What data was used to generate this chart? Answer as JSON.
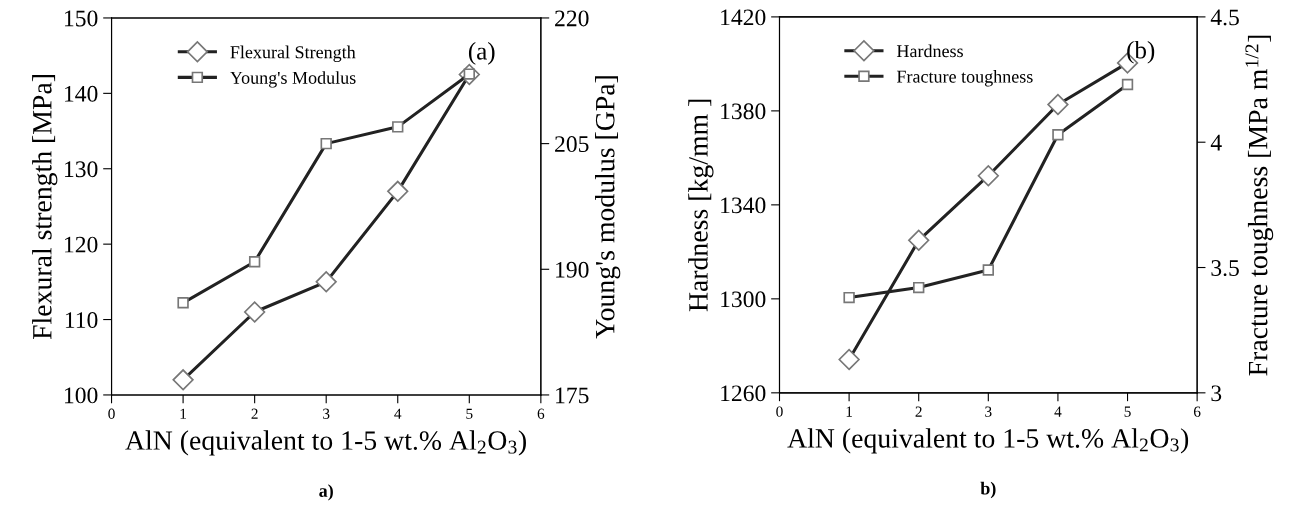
{
  "chart_data": [
    {
      "type": "line",
      "x": [
        1,
        2,
        3,
        4,
        5
      ],
      "xlim": [
        0,
        6
      ],
      "xticks": [
        0,
        1,
        2,
        3,
        4,
        5,
        6
      ],
      "ylim": [
        100,
        150
      ],
      "yticks": [
        100,
        110,
        120,
        130,
        140,
        150
      ],
      "y2lim": [
        175,
        220
      ],
      "y2ticks": [
        175,
        190,
        205,
        220
      ],
      "xlabel": "AlN (equivalent to 1-5 wt.% Al$_{2}$O$_{3}$)",
      "ylabel": "Flexural strength [MPa]",
      "y2label": "Young's modulus [GPa]",
      "legend": "top left",
      "grid": false,
      "line_style": "solid",
      "annotations": [
        "(a)",
        "a)"
      ],
      "series": [
        {
          "name": "Flexural Strength",
          "color": "#222222",
          "marker": "diamond",
          "values": [
            102,
            111,
            115,
            127,
            142.5
          ]
        },
        {
          "name": "Young's Modulus",
          "color": "#222222",
          "marker": "square",
          "axis": "y2",
          "values": [
            186.0,
            190.9,
            205.0,
            207.0,
            213.3
          ]
        }
      ]
    },
    {
      "type": "line",
      "x": [
        1,
        2,
        3,
        4,
        5
      ],
      "xlim": [
        0,
        6
      ],
      "xticks": [
        0,
        1,
        2,
        3,
        4,
        5,
        6
      ],
      "ylim": [
        1260,
        1420
      ],
      "yticks": [
        1260,
        1300,
        1340,
        1380,
        1420
      ],
      "y2lim": [
        3,
        4.5
      ],
      "y2ticks": [
        {
          "value": 3,
          "label": "3"
        },
        3.5,
        {
          "value": 4,
          "label": "4"
        },
        4.5
      ],
      "xlabel": "AlN (equivalent to 1-5 wt.% Al$_{2}$O$_{3}$)",
      "ylabel": "Hardness [kg/mm ]",
      "y2label": "Fracture toughness [MPa m$^{1/2}$]",
      "legend": "top left",
      "grid": false,
      "line_style": "solid",
      "annotations": [
        "(b)",
        "b)"
      ],
      "series": [
        {
          "name": "Hardness",
          "color": "#222222",
          "marker": "diamond",
          "values": [
            1274.2,
            1324.9,
            1352.4,
            1382.7,
            1400.4
          ]
        },
        {
          "name": "Fracture toughness",
          "color": "#222222",
          "marker": "square",
          "axis": "y2",
          "values": [
            3.38,
            3.42,
            3.49,
            4.03,
            4.23
          ]
        }
      ]
    }
  ]
}
